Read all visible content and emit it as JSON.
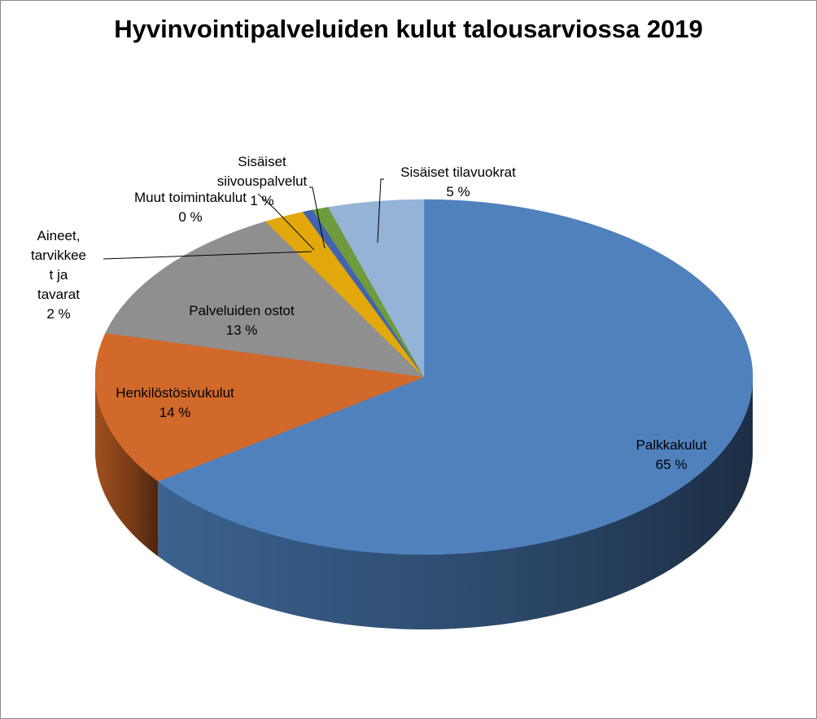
{
  "chart_data": {
    "type": "pie",
    "title": "Hyvinvointipalveluiden kulut talousarviossa 2019",
    "slices": [
      {
        "label": "Palkkakulut",
        "value": 65,
        "value_label": "65 %",
        "color": "#4f81bd",
        "side_color": "#3e6797"
      },
      {
        "label": "Henkilöstösivukulut",
        "value": 14,
        "value_label": "14 %",
        "color": "#d0692a",
        "side_color": "#a85320"
      },
      {
        "label": "Palveluiden ostot",
        "value": 13,
        "value_label": "13 %",
        "color": "#8f8f8f",
        "side_color": "#6f6f6f"
      },
      {
        "label": "Aineet, tarvikkeet ja tavarat",
        "value": 2,
        "value_label": "2 %",
        "color": "#e2a80c",
        "side_color": "#b38500"
      },
      {
        "label": "Muut toimintakulut",
        "value": 0.5,
        "value_label": "0 %",
        "color": "#4064b0",
        "side_color": "#2f4d8a"
      },
      {
        "label": "Sisäiset siivouspalvelut",
        "value": 0.8,
        "value_label": "1 %",
        "color": "#6f9a3d",
        "side_color": "#557a2c"
      },
      {
        "label": "Sisäiset tilavuokrat",
        "value": 4.7,
        "value_label": "5 %",
        "color": "#95b3d7",
        "side_color": "#7691b5"
      }
    ]
  }
}
